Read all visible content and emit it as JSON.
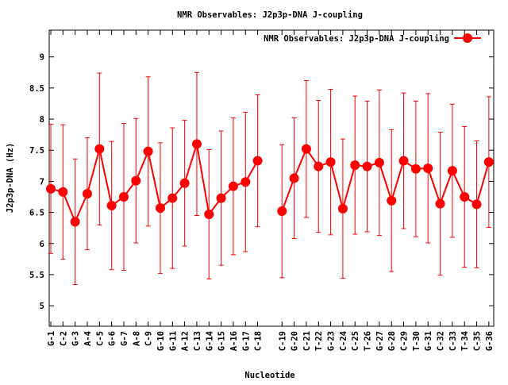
{
  "chart_data": {
    "type": "line",
    "title": "NMR Observables: J2p3p-DNA J-coupling",
    "xlabel": "Nucleotide",
    "ylabel": "J2p3p-DNA (Hz)",
    "legend": {
      "label": "NMR Observables: J2p3p-DNA J-coupling",
      "placement": "top-right"
    },
    "ylim": [
      4.67,
      9.43
    ],
    "xlim": [
      0.87,
      37.4
    ],
    "yticks": [
      5,
      5.5,
      6,
      6.5,
      7,
      7.5,
      8,
      8.5,
      9
    ],
    "ytick_labels": [
      "5",
      "5.5",
      "6",
      "6.5",
      "7",
      "7.5",
      "8",
      "8.5",
      "9"
    ],
    "series_color": "#ff0000",
    "errorbar_color": "#ff0000",
    "categories": [
      "G-1",
      "C-2",
      "G-3",
      "A-4",
      "C-5",
      "G-6",
      "G-7",
      "A-8",
      "C-9",
      "G-10",
      "G-11",
      "A-12",
      "C-13",
      "G-14",
      "G-15",
      "A-16",
      "G-17",
      "C-18",
      "C-19",
      "G-20",
      "C-21",
      "T-22",
      "G-23",
      "C-24",
      "C-25",
      "T-26",
      "G-27",
      "G-28",
      "C-29",
      "T-30",
      "G-31",
      "C-32",
      "C-33",
      "T-34",
      "C-35",
      "G-36"
    ],
    "x": [
      1,
      2,
      3,
      4,
      5,
      6,
      7,
      8,
      9,
      10,
      11,
      12,
      13,
      14,
      15,
      16,
      17,
      18,
      20,
      21,
      22,
      23,
      24,
      25,
      26,
      27,
      28,
      29,
      30,
      31,
      32,
      33,
      34,
      35,
      36,
      37
    ],
    "series": [
      {
        "name": "NMR Observables: J2p3p-DNA J-coupling",
        "values": [
          6.88,
          6.83,
          6.35,
          6.8,
          7.52,
          6.61,
          6.75,
          7.01,
          7.48,
          6.57,
          6.73,
          6.97,
          7.6,
          6.47,
          6.73,
          6.92,
          6.99,
          7.33,
          6.52,
          7.05,
          7.52,
          7.24,
          7.31,
          6.56,
          7.26,
          7.24,
          7.3,
          6.69,
          7.33,
          7.2,
          7.21,
          6.64,
          7.17,
          6.75,
          6.63,
          7.31
        ],
        "errors": [
          1.04,
          1.08,
          1.01,
          0.9,
          1.22,
          1.03,
          1.18,
          1.0,
          1.2,
          1.05,
          1.13,
          1.01,
          1.15,
          1.04,
          1.08,
          1.1,
          1.12,
          1.06,
          1.07,
          0.97,
          1.1,
          1.06,
          1.17,
          1.12,
          1.11,
          1.05,
          1.17,
          1.14,
          1.09,
          1.09,
          1.2,
          1.15,
          1.07,
          1.13,
          1.02,
          1.05
        ]
      }
    ]
  }
}
